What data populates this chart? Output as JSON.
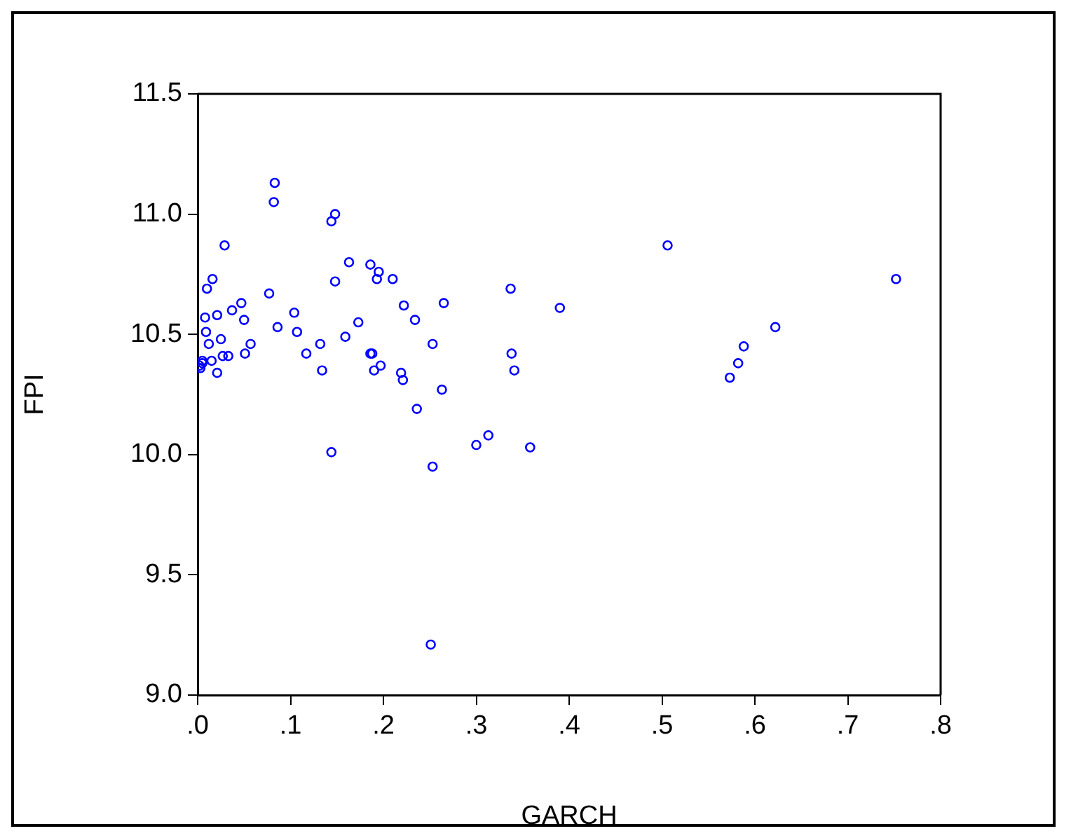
{
  "chart_data": {
    "type": "scatter",
    "xlabel": "GARCH",
    "ylabel": "FPI",
    "marker": "circle",
    "grid": false,
    "legend": false,
    "xlim": [
      0,
      0.8
    ],
    "xticks": [
      {
        "value": 0,
        "label": ".0"
      },
      {
        "value": 0.1,
        "label": ".1"
      },
      {
        "value": 0.2,
        "label": ".2"
      },
      {
        "value": 0.3,
        "label": ".3"
      },
      {
        "value": 0.4,
        "label": ".4"
      },
      {
        "value": 0.5,
        "label": ".5"
      },
      {
        "value": 0.6,
        "label": ".6"
      },
      {
        "value": 0.7,
        "label": ".7"
      },
      {
        "value": 0.8,
        "label": ".8"
      }
    ],
    "ylim": [
      9,
      11.5
    ],
    "yticks": [
      {
        "value": 9,
        "label": "9.0"
      },
      9.5,
      {
        "value": 10,
        "label": "10.0"
      },
      10.5,
      {
        "value": 11,
        "label": "11.0"
      },
      11.5
    ],
    "series": [
      {
        "color": "#0000ff",
        "x": [
          0.083,
          0.082,
          0.148,
          0.144,
          0.029,
          0.506,
          0.163,
          0.186,
          0.195,
          0.016,
          0.193,
          0.21,
          0.148,
          0.752,
          0.01,
          0.337,
          0.077,
          0.047,
          0.222,
          0.265,
          0.39,
          0.037,
          0.021,
          0.104,
          0.008,
          0.05,
          0.234,
          0.173,
          0.086,
          0.622,
          0.009,
          0.107,
          0.159,
          0.025,
          0.012,
          0.057,
          0.132,
          0.253,
          0.588,
          0.117,
          0.051,
          0.186,
          0.188,
          0.338,
          0.033,
          0.027,
          0.005,
          0.015,
          0.005,
          0.197,
          0.582,
          0.134,
          0.341,
          0.19,
          0.219,
          0.003,
          0.021,
          0.221,
          0.573,
          0.263,
          0.236,
          0.313,
          0.3,
          0.358,
          0.144,
          0.253,
          0.251,
          0.002
        ],
        "values": [
          11.13,
          11.05,
          11.0,
          10.97,
          10.87,
          10.87,
          10.8,
          10.79,
          10.76,
          10.73,
          10.73,
          10.73,
          10.72,
          10.73,
          10.69,
          10.69,
          10.67,
          10.63,
          10.62,
          10.63,
          10.61,
          10.6,
          10.58,
          10.59,
          10.57,
          10.56,
          10.56,
          10.55,
          10.53,
          10.53,
          10.51,
          10.51,
          10.49,
          10.48,
          10.46,
          10.46,
          10.46,
          10.46,
          10.45,
          10.42,
          10.42,
          10.42,
          10.42,
          10.42,
          10.41,
          10.41,
          10.39,
          10.39,
          10.38,
          10.37,
          10.38,
          10.35,
          10.35,
          10.35,
          10.34,
          10.36,
          10.34,
          10.31,
          10.32,
          10.27,
          10.19,
          10.08,
          10.04,
          10.03,
          10.01,
          9.95,
          9.21,
          10.37
        ]
      }
    ]
  }
}
